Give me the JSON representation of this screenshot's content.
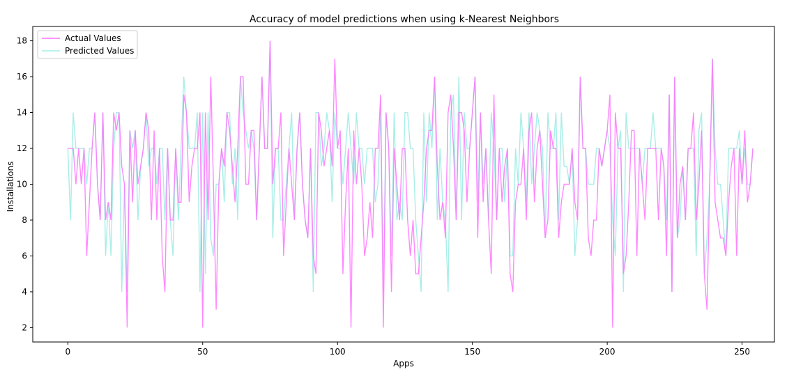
{
  "chart_data": {
    "type": "line",
    "title": "Accuracy of model predictions when using k-Nearest Neighbors",
    "xlabel": "Apps",
    "ylabel": "Installations",
    "xlim": [
      -13,
      262
    ],
    "ylim": [
      1.2,
      18.8
    ],
    "xticks": [
      0,
      50,
      100,
      150,
      200,
      250
    ],
    "yticks": [
      2,
      4,
      6,
      8,
      10,
      12,
      14,
      16,
      18
    ],
    "grid": false,
    "legend": "top-left",
    "series": [
      {
        "name": "Actual Values",
        "color": "#ff73ff",
        "values": [
          12,
          12,
          12,
          10,
          12,
          10,
          12,
          6,
          9,
          12,
          14,
          10,
          8,
          14,
          8,
          9,
          8,
          14,
          13,
          14,
          11,
          10,
          2,
          13,
          9,
          13,
          10,
          11,
          12,
          14,
          13,
          8,
          13,
          8,
          12,
          6,
          4,
          12,
          8,
          8,
          12,
          9,
          9,
          15,
          14,
          9,
          11,
          12,
          12,
          14,
          2,
          14,
          8,
          16,
          10,
          3,
          10,
          12,
          11,
          14,
          13,
          11,
          9,
          12,
          16,
          16,
          10,
          10,
          13,
          13,
          8,
          12,
          16,
          12,
          12,
          18,
          10,
          12,
          12,
          14,
          6,
          9,
          12,
          10,
          8,
          12,
          14,
          10,
          8,
          7,
          12,
          6,
          5,
          14,
          13,
          11,
          12,
          13,
          11,
          17,
          12,
          13,
          5,
          9,
          12,
          2,
          13,
          10,
          12,
          10,
          6,
          7,
          9,
          7,
          12,
          12,
          15,
          2,
          14,
          12,
          4,
          12,
          10,
          8,
          12,
          12,
          8,
          6,
          8,
          5,
          5,
          7,
          9,
          12,
          13,
          13,
          16,
          11,
          8,
          9,
          7,
          14,
          15,
          12,
          8,
          14,
          14,
          13,
          9,
          12,
          14,
          16,
          7,
          14,
          9,
          12,
          8,
          5,
          15,
          8,
          12,
          9,
          11,
          12,
          5,
          4,
          9,
          10,
          10,
          12,
          8,
          13,
          14,
          9,
          12,
          13,
          10,
          7,
          8,
          13,
          12,
          12,
          7,
          9,
          10,
          10,
          10,
          12,
          9,
          8,
          16,
          12,
          12,
          7,
          6,
          8,
          8,
          12,
          11,
          12,
          13,
          15,
          2,
          14,
          12,
          12,
          5,
          6,
          9,
          13,
          13,
          6,
          12,
          10,
          8,
          12,
          12,
          12,
          12,
          8,
          12,
          11,
          6,
          15,
          4,
          16,
          7,
          10,
          11,
          8,
          12,
          12,
          14,
          8,
          10,
          13,
          5,
          3,
          10,
          17,
          9,
          8,
          7,
          7,
          6,
          9,
          11,
          12,
          6,
          12,
          10,
          13,
          9,
          10,
          12
        ]
      },
      {
        "name": "Predicted Values",
        "color": "#a3ede6",
        "values": [
          12,
          8,
          14,
          12,
          12,
          12,
          12,
          10,
          12,
          12,
          14,
          10,
          8,
          14,
          6,
          9,
          6,
          12,
          14,
          14,
          4,
          10,
          4,
          13,
          12,
          13,
          8,
          11,
          12,
          14,
          11,
          12,
          12,
          10,
          12,
          12,
          8,
          12,
          8,
          6,
          12,
          8,
          12,
          16,
          14,
          12,
          12,
          12,
          14,
          4,
          14,
          5,
          14,
          7,
          6,
          10,
          10,
          12,
          9,
          14,
          14,
          10,
          12,
          8,
          16,
          14,
          13,
          12,
          13,
          12,
          8,
          12,
          16,
          12,
          12,
          18,
          7,
          12,
          12,
          8,
          8,
          10,
          12,
          14,
          8,
          12,
          14,
          10,
          8,
          7,
          12,
          4,
          14,
          14,
          11,
          12,
          14,
          13,
          9,
          14,
          12,
          12,
          10,
          12,
          14,
          12,
          10,
          14,
          12,
          12,
          10,
          12,
          12,
          12,
          9,
          10,
          14,
          4,
          14,
          12,
          6,
          14,
          8,
          9,
          8,
          14,
          14,
          12,
          12,
          8,
          6,
          4,
          14,
          9,
          14,
          12,
          16,
          8,
          12,
          9,
          8,
          4,
          14,
          15,
          8,
          16,
          8,
          14,
          12,
          12,
          14,
          16,
          9,
          14,
          10,
          12,
          8,
          14,
          12,
          8,
          12,
          12,
          9,
          12,
          6,
          6,
          12,
          10,
          14,
          12,
          9,
          14,
          10,
          12,
          14,
          13,
          12,
          7,
          14,
          12,
          12,
          14,
          8,
          14,
          11,
          11,
          10,
          12,
          6,
          8,
          16,
          12,
          12,
          10,
          10,
          10,
          12,
          12,
          11,
          12,
          13,
          12,
          8,
          6,
          12,
          13,
          4,
          14,
          12,
          12,
          12,
          12,
          12,
          10,
          12,
          12,
          12,
          14,
          12,
          12,
          12,
          11,
          8,
          15,
          4,
          16,
          7,
          8,
          11,
          8,
          12,
          12,
          12,
          6,
          13,
          14,
          5,
          7,
          10,
          17,
          12,
          10,
          10,
          8,
          6,
          12,
          12,
          12,
          12,
          13,
          10,
          12,
          10,
          10,
          12
        ]
      }
    ]
  }
}
